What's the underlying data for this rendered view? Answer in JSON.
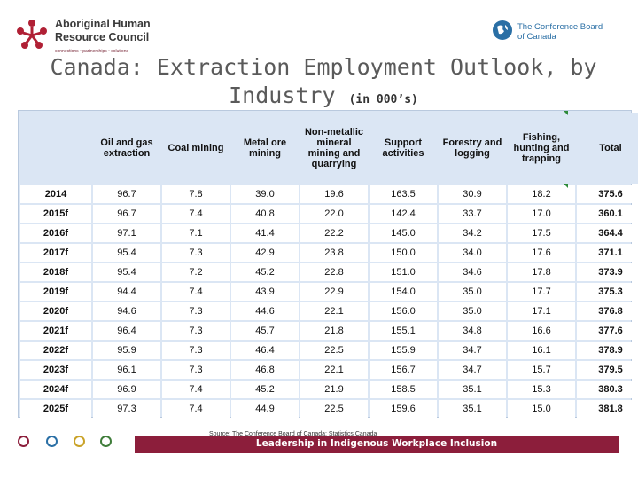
{
  "header": {
    "left_logo": {
      "line1": "Aboriginal Human",
      "line2": "Resource Council",
      "tagline": "connections • partnerships • solutions",
      "icon": "aboriginal-star-icon"
    },
    "right_logo": {
      "line1": "The Conference Board",
      "line2": "of Canada",
      "icon": "conference-board-globe-icon"
    }
  },
  "title": {
    "main": "Canada: Extraction Employment Outlook, by Industry",
    "unit": "(in 000’s)"
  },
  "table": {
    "headers": [
      "",
      "Oil and gas extraction",
      "Coal mining",
      "Metal ore mining",
      "Non-metallic mineral mining and quarrying",
      "Support activities",
      "Forestry and logging",
      "Fishing, hunting and trapping",
      "Total"
    ],
    "rows": [
      [
        "2014",
        "96.7",
        "7.8",
        "39.0",
        "19.6",
        "163.5",
        "30.9",
        "18.2",
        "375.6"
      ],
      [
        "2015f",
        "96.7",
        "7.4",
        "40.8",
        "22.0",
        "142.4",
        "33.7",
        "17.0",
        "360.1"
      ],
      [
        "2016f",
        "97.1",
        "7.1",
        "41.4",
        "22.2",
        "145.0",
        "34.2",
        "17.5",
        "364.4"
      ],
      [
        "2017f",
        "95.4",
        "7.3",
        "42.9",
        "23.8",
        "150.0",
        "34.0",
        "17.6",
        "371.1"
      ],
      [
        "2018f",
        "95.4",
        "7.2",
        "45.2",
        "22.8",
        "151.0",
        "34.6",
        "17.8",
        "373.9"
      ],
      [
        "2019f",
        "94.4",
        "7.4",
        "43.9",
        "22.9",
        "154.0",
        "35.0",
        "17.7",
        "375.3"
      ],
      [
        "2020f",
        "94.6",
        "7.3",
        "44.6",
        "22.1",
        "156.0",
        "35.0",
        "17.1",
        "376.8"
      ],
      [
        "2021f",
        "96.4",
        "7.3",
        "45.7",
        "21.8",
        "155.1",
        "34.8",
        "16.6",
        "377.6"
      ],
      [
        "2022f",
        "95.9",
        "7.3",
        "46.4",
        "22.5",
        "155.9",
        "34.7",
        "16.1",
        "378.9"
      ],
      [
        "2023f",
        "96.1",
        "7.3",
        "46.8",
        "22.1",
        "156.7",
        "34.7",
        "15.7",
        "379.5"
      ],
      [
        "2024f",
        "96.9",
        "7.4",
        "45.2",
        "21.9",
        "158.5",
        "35.1",
        "15.3",
        "380.3"
      ],
      [
        "2025f",
        "97.3",
        "7.4",
        "44.9",
        "22.5",
        "159.6",
        "35.1",
        "15.0",
        "381.8"
      ]
    ]
  },
  "footer": {
    "source": "Source: The Conference Board of Canada; Statistics Canada",
    "banner": "Leadership in Indigenous Workplace Inclusion",
    "circle_colors": [
      "#8c1e3b",
      "#2a6fa5",
      "#c9a227",
      "#3f7d3a"
    ]
  },
  "colors": {
    "accent": "#8c1e3b",
    "table_bg": "#dbe6f4",
    "title": "#5a5a5a"
  }
}
